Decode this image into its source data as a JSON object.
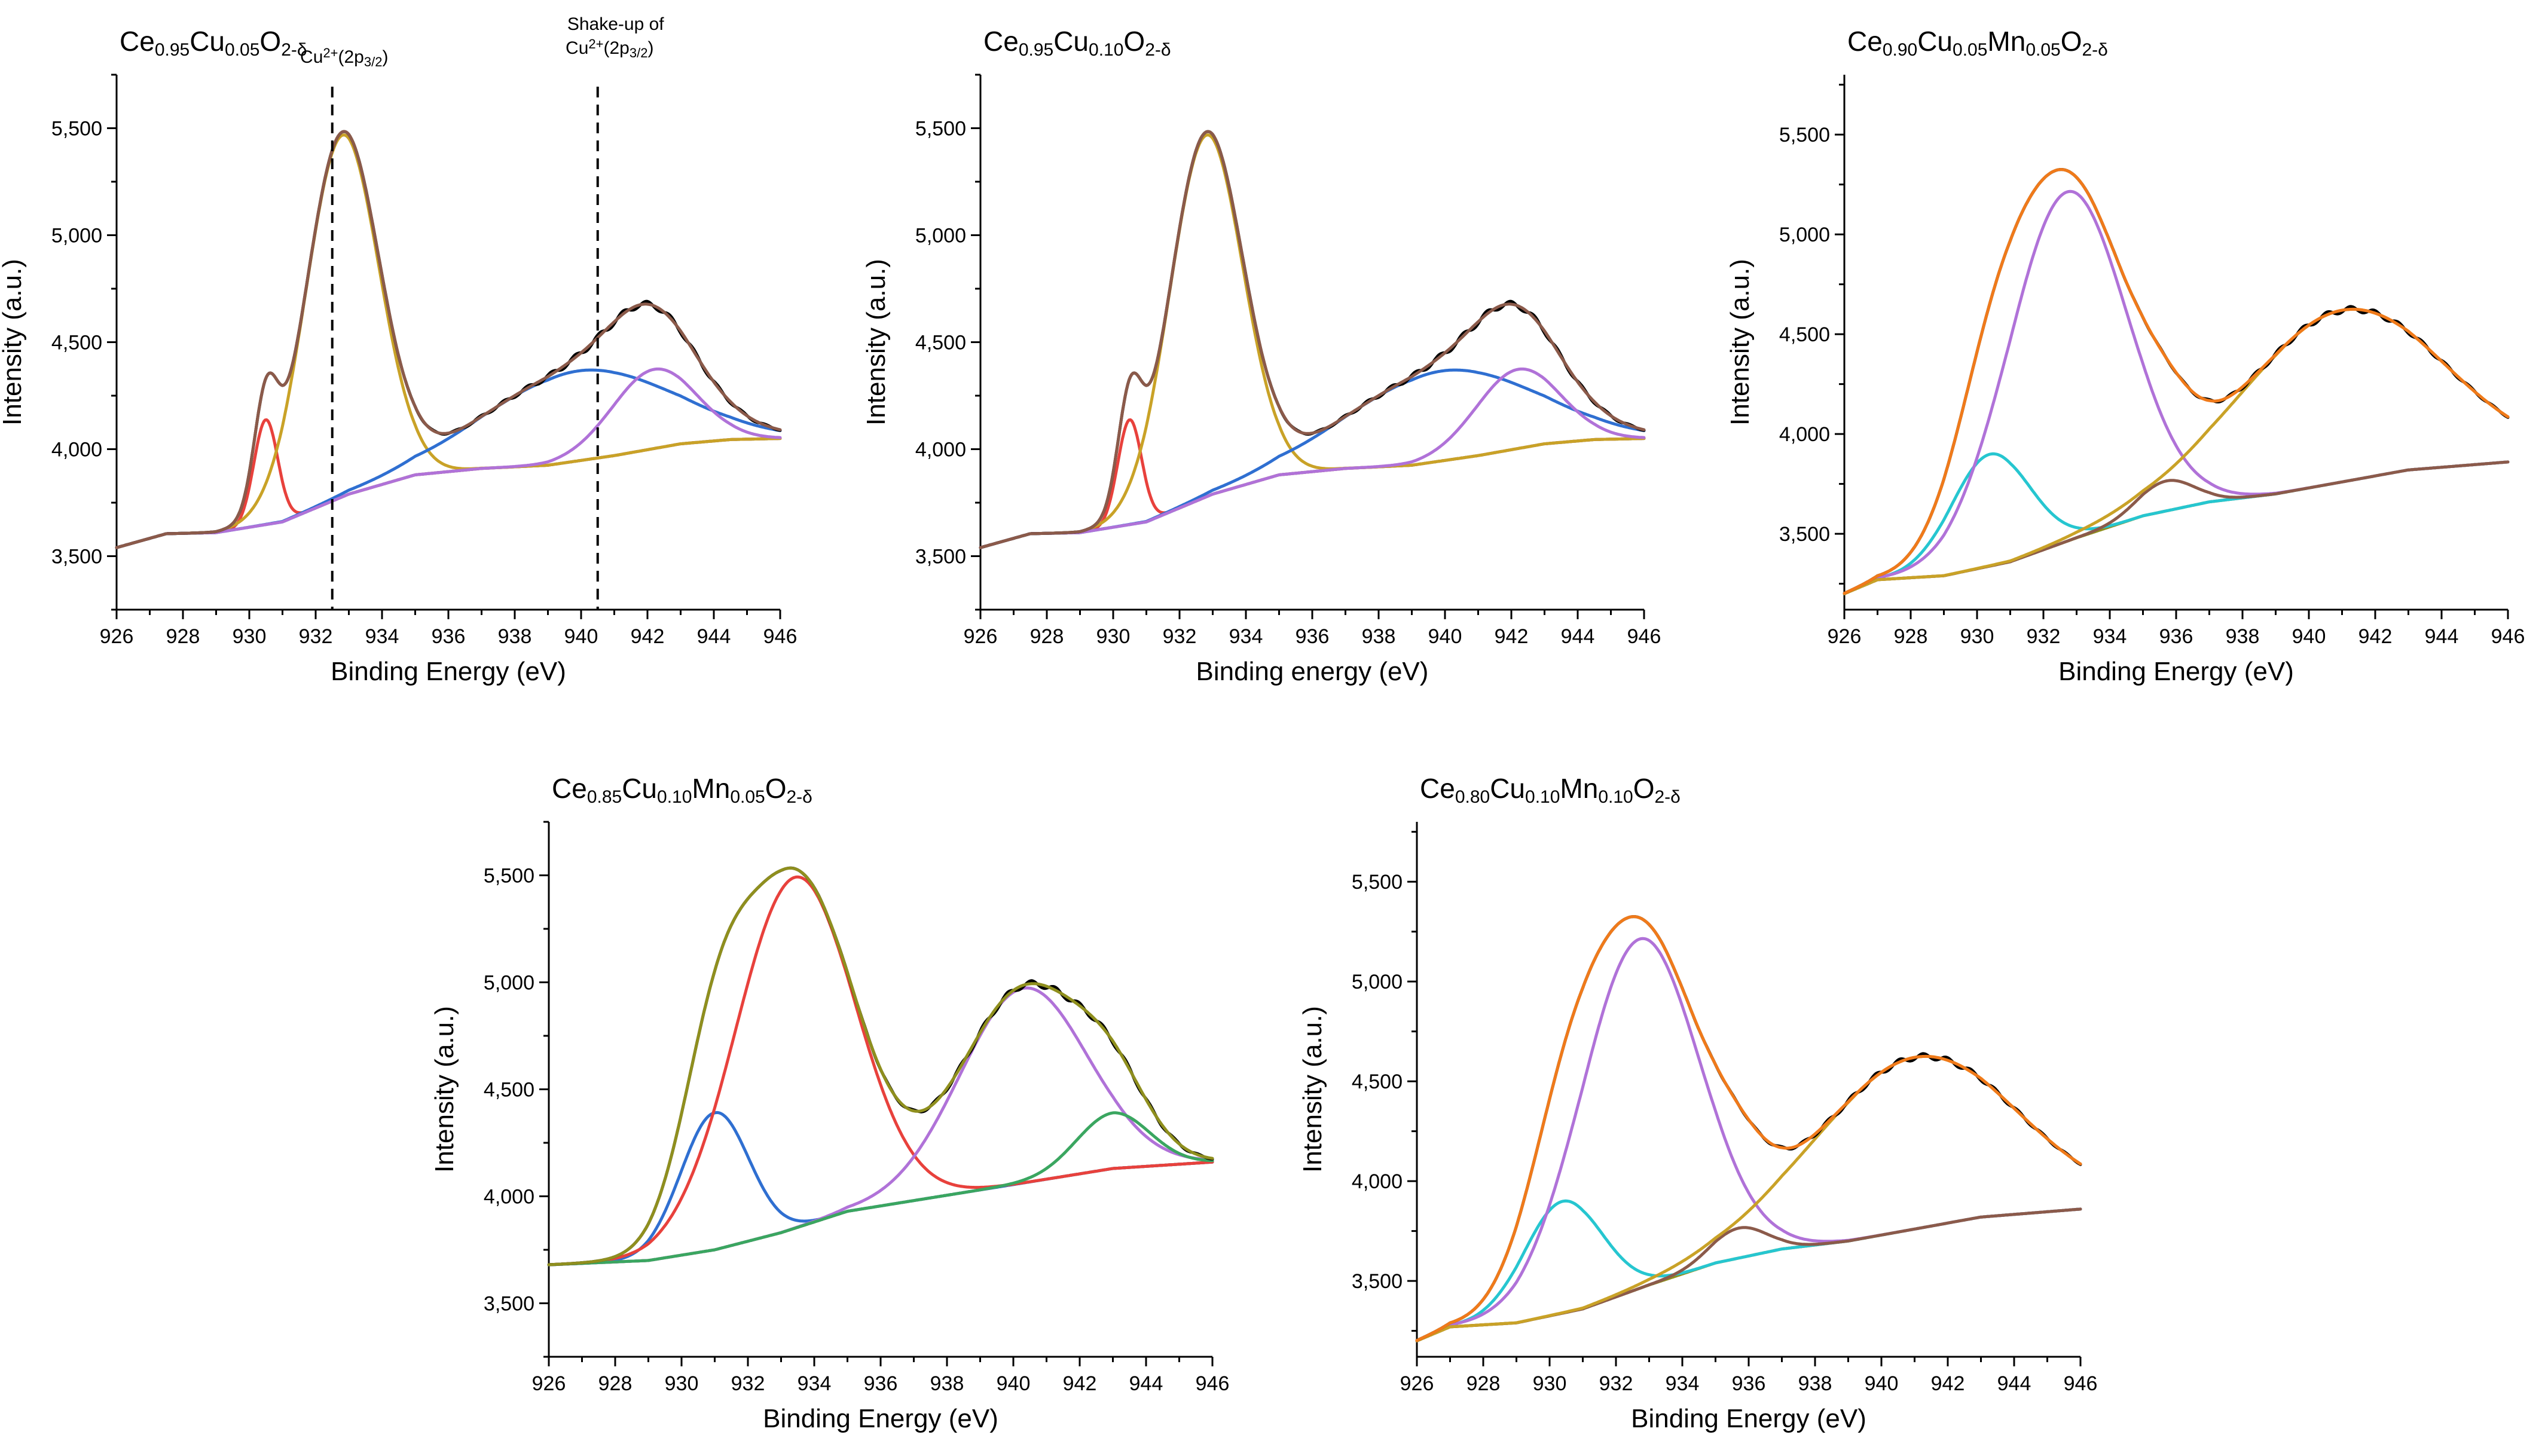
{
  "chart_data": [
    {
      "type": "line",
      "title_parts": [
        {
          "t": "Ce",
          "sub": false
        },
        {
          "t": "0.95",
          "sub": true
        },
        {
          "t": "Cu",
          "sub": false
        },
        {
          "t": "0.05",
          "sub": true
        },
        {
          "t": "O",
          "sub": false
        },
        {
          "t": "2-δ",
          "sub": true
        }
      ],
      "xlabel": "Binding Energy (eV)",
      "ylabel": "Intensity (a.u.)",
      "xlim": [
        926,
        946
      ],
      "ylim": [
        3250,
        5750
      ],
      "xticks": [
        926,
        928,
        930,
        932,
        934,
        936,
        938,
        940,
        942,
        944,
        946
      ],
      "yticks": [
        3500,
        4000,
        4500,
        5000,
        5500
      ],
      "ytick_labels": [
        "3,500",
        "4,000",
        "4,500",
        "5,000",
        "5,500"
      ],
      "background": {
        "points": [
          [
            926,
            3540
          ],
          [
            927.5,
            3605
          ],
          [
            929,
            3610
          ],
          [
            931,
            3660
          ],
          [
            933,
            3790
          ],
          [
            935,
            3880
          ],
          [
            937,
            3910
          ],
          [
            939,
            3925
          ],
          [
            941,
            3970
          ],
          [
            943,
            4025
          ],
          [
            944.5,
            4045
          ],
          [
            946,
            4050
          ]
        ],
        "color": "#26c6d0"
      },
      "components": [
        {
          "type": "gauss",
          "center": 930.5,
          "amp": 490,
          "fwhm": 0.85,
          "color": "#e8413c"
        },
        {
          "type": "gauss",
          "center": 932.8,
          "amp": 1690,
          "fwhm": 2.6,
          "color": "#c9a227"
        },
        {
          "type": "gauss",
          "center": 939.9,
          "amp": 420,
          "fwhm": 6.5,
          "color": "#2f6fd1"
        },
        {
          "type": "gauss",
          "center": 942.2,
          "amp": 370,
          "fwhm": 3.0,
          "color": "#b072d8"
        }
      ],
      "envelope_colors": [
        "#000000",
        "#8b5a4a"
      ],
      "annotations": [
        {
          "x": 932.5,
          "label_parts": [
            {
              "t": "Cu",
              "s": ""
            },
            {
              "t": "2+",
              "s": "sup"
            },
            {
              "t": "(2p",
              "s": ""
            },
            {
              "t": "3/2",
              "s": "sub"
            },
            {
              "t": ")",
              "s": ""
            }
          ]
        },
        {
          "x": 940.5,
          "label_line1": "Shake-up of",
          "label_parts": [
            {
              "t": "Cu",
              "s": ""
            },
            {
              "t": "2+",
              "s": "sup"
            },
            {
              "t": "(2p",
              "s": ""
            },
            {
              "t": "3/2",
              "s": "sub"
            },
            {
              "t": ")",
              "s": ""
            }
          ]
        }
      ]
    },
    {
      "type": "line",
      "title_parts": [
        {
          "t": "Ce",
          "sub": false
        },
        {
          "t": "0.95",
          "sub": true
        },
        {
          "t": "Cu",
          "sub": false
        },
        {
          "t": "0.10",
          "sub": true
        },
        {
          "t": "O",
          "sub": false
        },
        {
          "t": "2-δ",
          "sub": true
        }
      ],
      "xlabel": "Binding energy (eV)",
      "ylabel": "Intensity (a.u.)",
      "xlim": [
        926,
        946
      ],
      "ylim": [
        3250,
        5750
      ],
      "xticks": [
        926,
        928,
        930,
        932,
        934,
        936,
        938,
        940,
        942,
        944,
        946
      ],
      "yticks": [
        3500,
        4000,
        4500,
        5000,
        5500
      ],
      "ytick_labels": [
        "3,500",
        "4,000",
        "4,500",
        "5,000",
        "5,500"
      ],
      "background": {
        "points": [
          [
            926,
            3540
          ],
          [
            927.5,
            3605
          ],
          [
            929,
            3610
          ],
          [
            931,
            3660
          ],
          [
            933,
            3790
          ],
          [
            935,
            3880
          ],
          [
            937,
            3910
          ],
          [
            939,
            3925
          ],
          [
            941,
            3970
          ],
          [
            943,
            4025
          ],
          [
            944.5,
            4045
          ],
          [
            946,
            4050
          ]
        ],
        "color": "#26c6d0"
      },
      "components": [
        {
          "type": "gauss",
          "center": 930.5,
          "amp": 490,
          "fwhm": 0.85,
          "color": "#e8413c"
        },
        {
          "type": "gauss",
          "center": 932.8,
          "amp": 1690,
          "fwhm": 2.6,
          "color": "#c9a227"
        },
        {
          "type": "gauss",
          "center": 939.9,
          "amp": 420,
          "fwhm": 6.5,
          "color": "#2f6fd1"
        },
        {
          "type": "gauss",
          "center": 942.2,
          "amp": 370,
          "fwhm": 3.0,
          "color": "#b072d8"
        }
      ],
      "envelope_colors": [
        "#000000",
        "#8b5a4a"
      ],
      "annotations": []
    },
    {
      "type": "line",
      "title_parts": [
        {
          "t": "Ce",
          "sub": false
        },
        {
          "t": "0.90",
          "sub": true
        },
        {
          "t": "Cu",
          "sub": false
        },
        {
          "t": "0.05",
          "sub": true
        },
        {
          "t": "Mn",
          "sub": false
        },
        {
          "t": "0.05",
          "sub": true
        },
        {
          "t": "O",
          "sub": false
        },
        {
          "t": "2-δ",
          "sub": true
        }
      ],
      "xlabel": "Binding Energy (eV)",
      "ylabel": "Intensity (a.u.)",
      "xlim": [
        926,
        946
      ],
      "ylim": [
        3120,
        5800
      ],
      "xticks": [
        926,
        928,
        930,
        932,
        934,
        936,
        938,
        940,
        942,
        944,
        946
      ],
      "yticks": [
        3500,
        4000,
        4500,
        5000,
        5500
      ],
      "ytick_labels": [
        "3,500",
        "4,000",
        "4,500",
        "5,000",
        "5,500"
      ],
      "background": {
        "points": [
          [
            926,
            3200
          ],
          [
            927,
            3270
          ],
          [
            929,
            3290
          ],
          [
            931,
            3360
          ],
          [
            933,
            3480
          ],
          [
            935,
            3590
          ],
          [
            937,
            3660
          ],
          [
            939,
            3700
          ],
          [
            941,
            3760
          ],
          [
            943,
            3820
          ],
          [
            946,
            3860
          ]
        ],
        "color": "#8f8f1e"
      },
      "components": [
        {
          "type": "gauss",
          "center": 930.4,
          "amp": 560,
          "fwhm": 2.8,
          "color": "#26c6d0"
        },
        {
          "type": "gauss",
          "center": 932.7,
          "amp": 1750,
          "fwhm": 4.2,
          "color": "#b072d8"
        },
        {
          "type": "gauss",
          "center": 935.7,
          "amp": 150,
          "fwhm": 2.0,
          "color": "#8b5a4a"
        },
        {
          "type": "gauss",
          "center": 941.0,
          "amp": 860,
          "fwhm": 7.2,
          "color": "#c9a227"
        }
      ],
      "envelope_colors": [
        "#000000",
        "#f07a1a"
      ],
      "annotations": []
    },
    {
      "type": "line",
      "title_parts": [
        {
          "t": "Ce",
          "sub": false
        },
        {
          "t": "0.85",
          "sub": true
        },
        {
          "t": "Cu",
          "sub": false
        },
        {
          "t": "0.10",
          "sub": true
        },
        {
          "t": "Mn",
          "sub": false
        },
        {
          "t": "0.05",
          "sub": true
        },
        {
          "t": "O",
          "sub": false
        },
        {
          "t": "2-δ",
          "sub": true
        }
      ],
      "xlabel": "Binding Energy (eV)",
      "ylabel": "Intensity (a.u.)",
      "xlim": [
        926,
        946
      ],
      "ylim": [
        3250,
        5750
      ],
      "xticks": [
        926,
        928,
        930,
        932,
        934,
        936,
        938,
        940,
        942,
        944,
        946
      ],
      "yticks": [
        3500,
        4000,
        4500,
        5000,
        5500
      ],
      "ytick_labels": [
        "3,500",
        "4,000",
        "4,500",
        "5,000",
        "5,500"
      ],
      "background": {
        "points": [
          [
            926,
            3680
          ],
          [
            927.5,
            3690
          ],
          [
            929,
            3700
          ],
          [
            931,
            3750
          ],
          [
            933,
            3830
          ],
          [
            935,
            3930
          ],
          [
            937,
            3980
          ],
          [
            939,
            4030
          ],
          [
            941,
            4080
          ],
          [
            943,
            4130
          ],
          [
            946,
            4160
          ]
        ],
        "color": "#8b5a4a"
      },
      "components": [
        {
          "type": "gauss",
          "center": 931.0,
          "amp": 640,
          "fwhm": 2.4,
          "color": "#2f6fd1"
        },
        {
          "type": "gauss",
          "center": 933.4,
          "amp": 1640,
          "fwhm": 4.2,
          "color": "#e8413c"
        },
        {
          "type": "gauss",
          "center": 940.3,
          "amp": 910,
          "fwhm": 4.5,
          "color": "#b072d8"
        },
        {
          "type": "gauss",
          "center": 943.0,
          "amp": 260,
          "fwhm": 2.6,
          "color": "#3aa660"
        }
      ],
      "envelope_colors": [
        "#000000",
        "#8f8f1e"
      ],
      "annotations": []
    },
    {
      "type": "line",
      "title_parts": [
        {
          "t": "Ce",
          "sub": false
        },
        {
          "t": "0.80",
          "sub": true
        },
        {
          "t": "Cu",
          "sub": false
        },
        {
          "t": "0.10",
          "sub": true
        },
        {
          "t": "Mn",
          "sub": false
        },
        {
          "t": "0.10",
          "sub": true
        },
        {
          "t": "O",
          "sub": false
        },
        {
          "t": "2-δ",
          "sub": true
        }
      ],
      "xlabel": "Binding Energy (eV)",
      "ylabel": "Intensity (a.u.)",
      "xlim": [
        926,
        946
      ],
      "ylim": [
        3120,
        5800
      ],
      "xticks": [
        926,
        928,
        930,
        932,
        934,
        936,
        938,
        940,
        942,
        944,
        946
      ],
      "yticks": [
        3500,
        4000,
        4500,
        5000,
        5500
      ],
      "ytick_labels": [
        "3,500",
        "4,000",
        "4,500",
        "5,000",
        "5,500"
      ],
      "background": {
        "points": [
          [
            926,
            3200
          ],
          [
            927,
            3270
          ],
          [
            929,
            3290
          ],
          [
            931,
            3360
          ],
          [
            933,
            3480
          ],
          [
            935,
            3590
          ],
          [
            937,
            3660
          ],
          [
            939,
            3700
          ],
          [
            941,
            3760
          ],
          [
            943,
            3820
          ],
          [
            946,
            3860
          ]
        ],
        "color": "#8f8f1e"
      },
      "components": [
        {
          "type": "gauss",
          "center": 930.4,
          "amp": 560,
          "fwhm": 2.8,
          "color": "#26c6d0"
        },
        {
          "type": "gauss",
          "center": 932.7,
          "amp": 1750,
          "fwhm": 4.2,
          "color": "#b072d8"
        },
        {
          "type": "gauss",
          "center": 935.7,
          "amp": 150,
          "fwhm": 2.0,
          "color": "#8b5a4a"
        },
        {
          "type": "gauss",
          "center": 941.0,
          "amp": 860,
          "fwhm": 7.2,
          "color": "#c9a227"
        }
      ],
      "envelope_colors": [
        "#000000",
        "#f07a1a"
      ],
      "annotations": []
    }
  ]
}
